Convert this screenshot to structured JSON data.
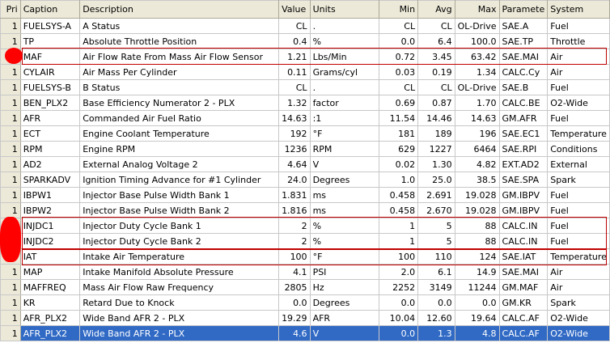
{
  "columns": [
    "Pri",
    "Caption",
    "Description",
    "Value",
    "Units",
    "Min",
    "Avg",
    "Max",
    "Parameter",
    "System"
  ],
  "column_headers_shown": [
    "Pri",
    "Caption",
    "Description",
    "Value",
    "Units",
    "Min",
    "Avg",
    "Max",
    "Paramete",
    "System"
  ],
  "rows": [
    {
      "pri": "1",
      "caption": "FUELSYS-A",
      "description": "A Status",
      "value": "CL",
      "units": ".",
      "min": "CL",
      "avg": "CL",
      "max": "OL-Drive",
      "param": "SAE.A",
      "system": "Fuel"
    },
    {
      "pri": "1",
      "caption": "TP",
      "description": "Absolute Throttle Position",
      "value": "0.4",
      "units": "%",
      "min": "0.0",
      "avg": "6.4",
      "max": "100.0",
      "param": "SAE.TP",
      "system": "Throttle"
    },
    {
      "pri": "",
      "caption": "MAF",
      "description": "Air Flow Rate From Mass Air Flow Sensor",
      "value": "1.21",
      "units": "Lbs/Min",
      "min": "0.72",
      "avg": "3.45",
      "max": "63.42",
      "param": "SAE.MAI",
      "system": "Air"
    },
    {
      "pri": "1",
      "caption": "CYLAIR",
      "description": "Air Mass Per Cylinder",
      "value": "0.11",
      "units": "Grams/cyl",
      "min": "0.03",
      "avg": "0.19",
      "max": "1.34",
      "param": "CALC.Cy",
      "system": "Air"
    },
    {
      "pri": "1",
      "caption": "FUELSYS-B",
      "description": "B Status",
      "value": "CL",
      "units": ".",
      "min": "CL",
      "avg": "CL",
      "max": "OL-Drive",
      "param": "SAE.B",
      "system": "Fuel"
    },
    {
      "pri": "1",
      "caption": "BEN_PLX2",
      "description": "Base Efficiency Numerator 2 - PLX",
      "value": "1.32",
      "units": "factor",
      "min": "0.69",
      "avg": "0.87",
      "max": "1.70",
      "param": "CALC.BE",
      "system": "O2-Wide"
    },
    {
      "pri": "1",
      "caption": "AFR",
      "description": "Commanded Air Fuel Ratio",
      "value": "14.63",
      "units": ":1",
      "min": "11.54",
      "avg": "14.46",
      "max": "14.63",
      "param": "GM.AFR",
      "system": "Fuel"
    },
    {
      "pri": "1",
      "caption": "ECT",
      "description": "Engine Coolant Temperature",
      "value": "192",
      "units": "°F",
      "min": "181",
      "avg": "189",
      "max": "196",
      "param": "SAE.EC1",
      "system": "Temperature"
    },
    {
      "pri": "1",
      "caption": "RPM",
      "description": "Engine RPM",
      "value": "1236",
      "units": "RPM",
      "min": "629",
      "avg": "1227",
      "max": "6464",
      "param": "SAE.RPI",
      "system": "Conditions"
    },
    {
      "pri": "1",
      "caption": "AD2",
      "description": "External Analog Voltage 2",
      "value": "4.64",
      "units": "V",
      "min": "0.02",
      "avg": "1.30",
      "max": "4.82",
      "param": "EXT.AD2",
      "system": "External"
    },
    {
      "pri": "1",
      "caption": "SPARKADV",
      "description": "Ignition Timing Advance for #1 Cylinder",
      "value": "24.0",
      "units": "Degrees",
      "min": "1.0",
      "avg": "25.0",
      "max": "38.5",
      "param": "SAE.SPA",
      "system": "Spark"
    },
    {
      "pri": "1",
      "caption": "IBPW1",
      "description": "Injector Base Pulse Width Bank 1",
      "value": "1.831",
      "units": "ms",
      "min": "0.458",
      "avg": "2.691",
      "max": "19.028",
      "param": "GM.IBPV",
      "system": "Fuel"
    },
    {
      "pri": "1",
      "caption": "IBPW2",
      "description": "Injector Base Pulse Width Bank 2",
      "value": "1.816",
      "units": "ms",
      "min": "0.458",
      "avg": "2.670",
      "max": "19.028",
      "param": "GM.IBPV",
      "system": "Fuel"
    },
    {
      "pri": "",
      "caption": "INJDC1",
      "description": "Injector Duty Cycle Bank 1",
      "value": "2",
      "units": "%",
      "min": "1",
      "avg": "5",
      "max": "88",
      "param": "CALC.IN",
      "system": "Fuel"
    },
    {
      "pri": "",
      "caption": "INJDC2",
      "description": "Injector Duty Cycle Bank 2",
      "value": "2",
      "units": "%",
      "min": "1",
      "avg": "5",
      "max": "88",
      "param": "CALC.IN",
      "system": "Fuel"
    },
    {
      "pri": "",
      "caption": "IAT",
      "description": "Intake Air Temperature",
      "value": "100",
      "units": "°F",
      "min": "100",
      "avg": "110",
      "max": "124",
      "param": "SAE.IAT",
      "system": "Temperature"
    },
    {
      "pri": "1",
      "caption": "MAP",
      "description": "Intake Manifold Absolute Pressure",
      "value": "4.1",
      "units": "PSI",
      "min": "2.0",
      "avg": "6.1",
      "max": "14.9",
      "param": "SAE.MAI",
      "system": "Air"
    },
    {
      "pri": "1",
      "caption": "MAFFREQ",
      "description": "Mass Air Flow Raw Frequency",
      "value": "2805",
      "units": "Hz",
      "min": "2252",
      "avg": "3149",
      "max": "11244",
      "param": "GM.MAF",
      "system": "Air"
    },
    {
      "pri": "1",
      "caption": "KR",
      "description": "Retard Due to Knock",
      "value": "0.0",
      "units": "Degrees",
      "min": "0.0",
      "avg": "0.0",
      "max": "0.0",
      "param": "GM.KR",
      "system": "Spark"
    },
    {
      "pri": "1",
      "caption": "AFR_PLX2",
      "description": "Wide Band AFR 2 - PLX",
      "value": "19.29",
      "units": "AFR",
      "min": "10.04",
      "avg": "12.60",
      "max": "19.64",
      "param": "CALC.AF",
      "system": "O2-Wide"
    },
    {
      "pri": "1",
      "caption": "AFR_PLX2",
      "description": "Wide Band AFR 2 - PLX",
      "value": "4.6",
      "units": "V",
      "min": "0.0",
      "avg": "1.3",
      "max": "4.8",
      "param": "CALC.AF",
      "system": "O2-Wide",
      "selected": true
    }
  ],
  "colors": {
    "selection": "#316ac5",
    "highlight_border": "#c00000",
    "marker": "#ff0000"
  }
}
